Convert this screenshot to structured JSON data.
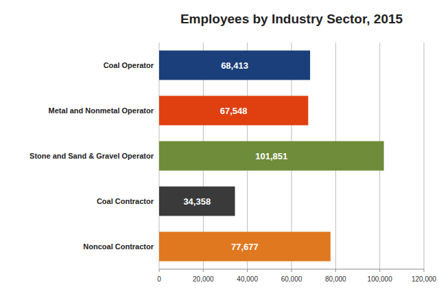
{
  "chart_data": {
    "type": "bar",
    "orientation": "horizontal",
    "title": "Employees by Industry Sector, 2015",
    "categories": [
      "Noncoal Contractor",
      "Coal Contractor",
      "Stone and Sand & Gravel Operator",
      "Metal and Nonmetal Operator",
      "Coal Operator"
    ],
    "values": [
      77677,
      34358,
      101851,
      67548,
      68413
    ],
    "value_labels": [
      "77,677",
      "34,358",
      "101,851",
      "67,548",
      "68,413"
    ],
    "colors": [
      "#e07820",
      "#3a3a3a",
      "#6e8c3a",
      "#e04010",
      "#1a3f7a"
    ],
    "xlim": [
      0,
      120000
    ],
    "xticks": [
      0,
      {
        "value": 20000,
        "label": "20,000"
      },
      {
        "value": 40000,
        "label": "40,000"
      },
      {
        "value": 60000,
        "label": "60,000"
      },
      {
        "value": 80000,
        "label": "80,000"
      },
      {
        "value": 100000,
        "label": "100,000"
      },
      {
        "value": 120000,
        "label": "120,000"
      }
    ],
    "grid": true,
    "data_labels": true
  }
}
